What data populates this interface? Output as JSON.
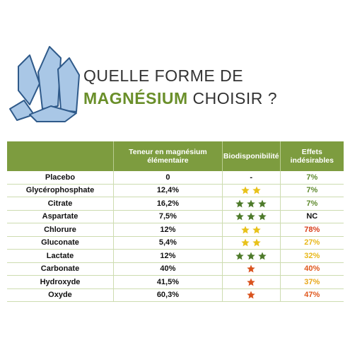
{
  "title": {
    "line1": "QUELLE FORME DE",
    "highlight": "MAGNÉSIUM",
    "line2_rest": "CHOISIR ?"
  },
  "table": {
    "headers": [
      "Teneur en magnésium élémentaire",
      "Biodisponibilité",
      "Effets indésirables"
    ],
    "star_colors": {
      "1": "#d9531e",
      "2": "#e8c21a",
      "3": "#4d7a2a"
    },
    "rows": [
      {
        "name": "Placebo",
        "teneur": "0",
        "bio": "-",
        "effets": "7%",
        "effets_color": "#5f8a2e"
      },
      {
        "name": "Glycérophosphate",
        "teneur": "12,4%",
        "stars": 2,
        "effets": "7%",
        "effets_color": "#5f8a2e"
      },
      {
        "name": "Citrate",
        "teneur": "16,2%",
        "stars": 3,
        "effets": "7%",
        "effets_color": "#5f8a2e"
      },
      {
        "name": "Aspartate",
        "teneur": "7,5%",
        "stars": 3,
        "effets": "NC",
        "effets_color": "#111111"
      },
      {
        "name": "Chlorure",
        "teneur": "12%",
        "stars": 2,
        "effets": "78%",
        "effets_color": "#d9411e"
      },
      {
        "name": "Gluconate",
        "teneur": "5,4%",
        "stars": 2,
        "effets": "27%",
        "effets_color": "#e8b81a"
      },
      {
        "name": "Lactate",
        "teneur": "12%",
        "stars": 3,
        "effets": "32%",
        "effets_color": "#e8b81a"
      },
      {
        "name": "Carbonate",
        "teneur": "40%",
        "stars": 1,
        "effets": "40%",
        "effets_color": "#e0581e"
      },
      {
        "name": "Hydroxyde",
        "teneur": "41,5%",
        "stars": 1,
        "effets": "37%",
        "effets_color": "#e8a81a"
      },
      {
        "name": "Oxyde",
        "teneur": "60,3%",
        "stars": 1,
        "effets": "47%",
        "effets_color": "#e0581e"
      }
    ]
  }
}
